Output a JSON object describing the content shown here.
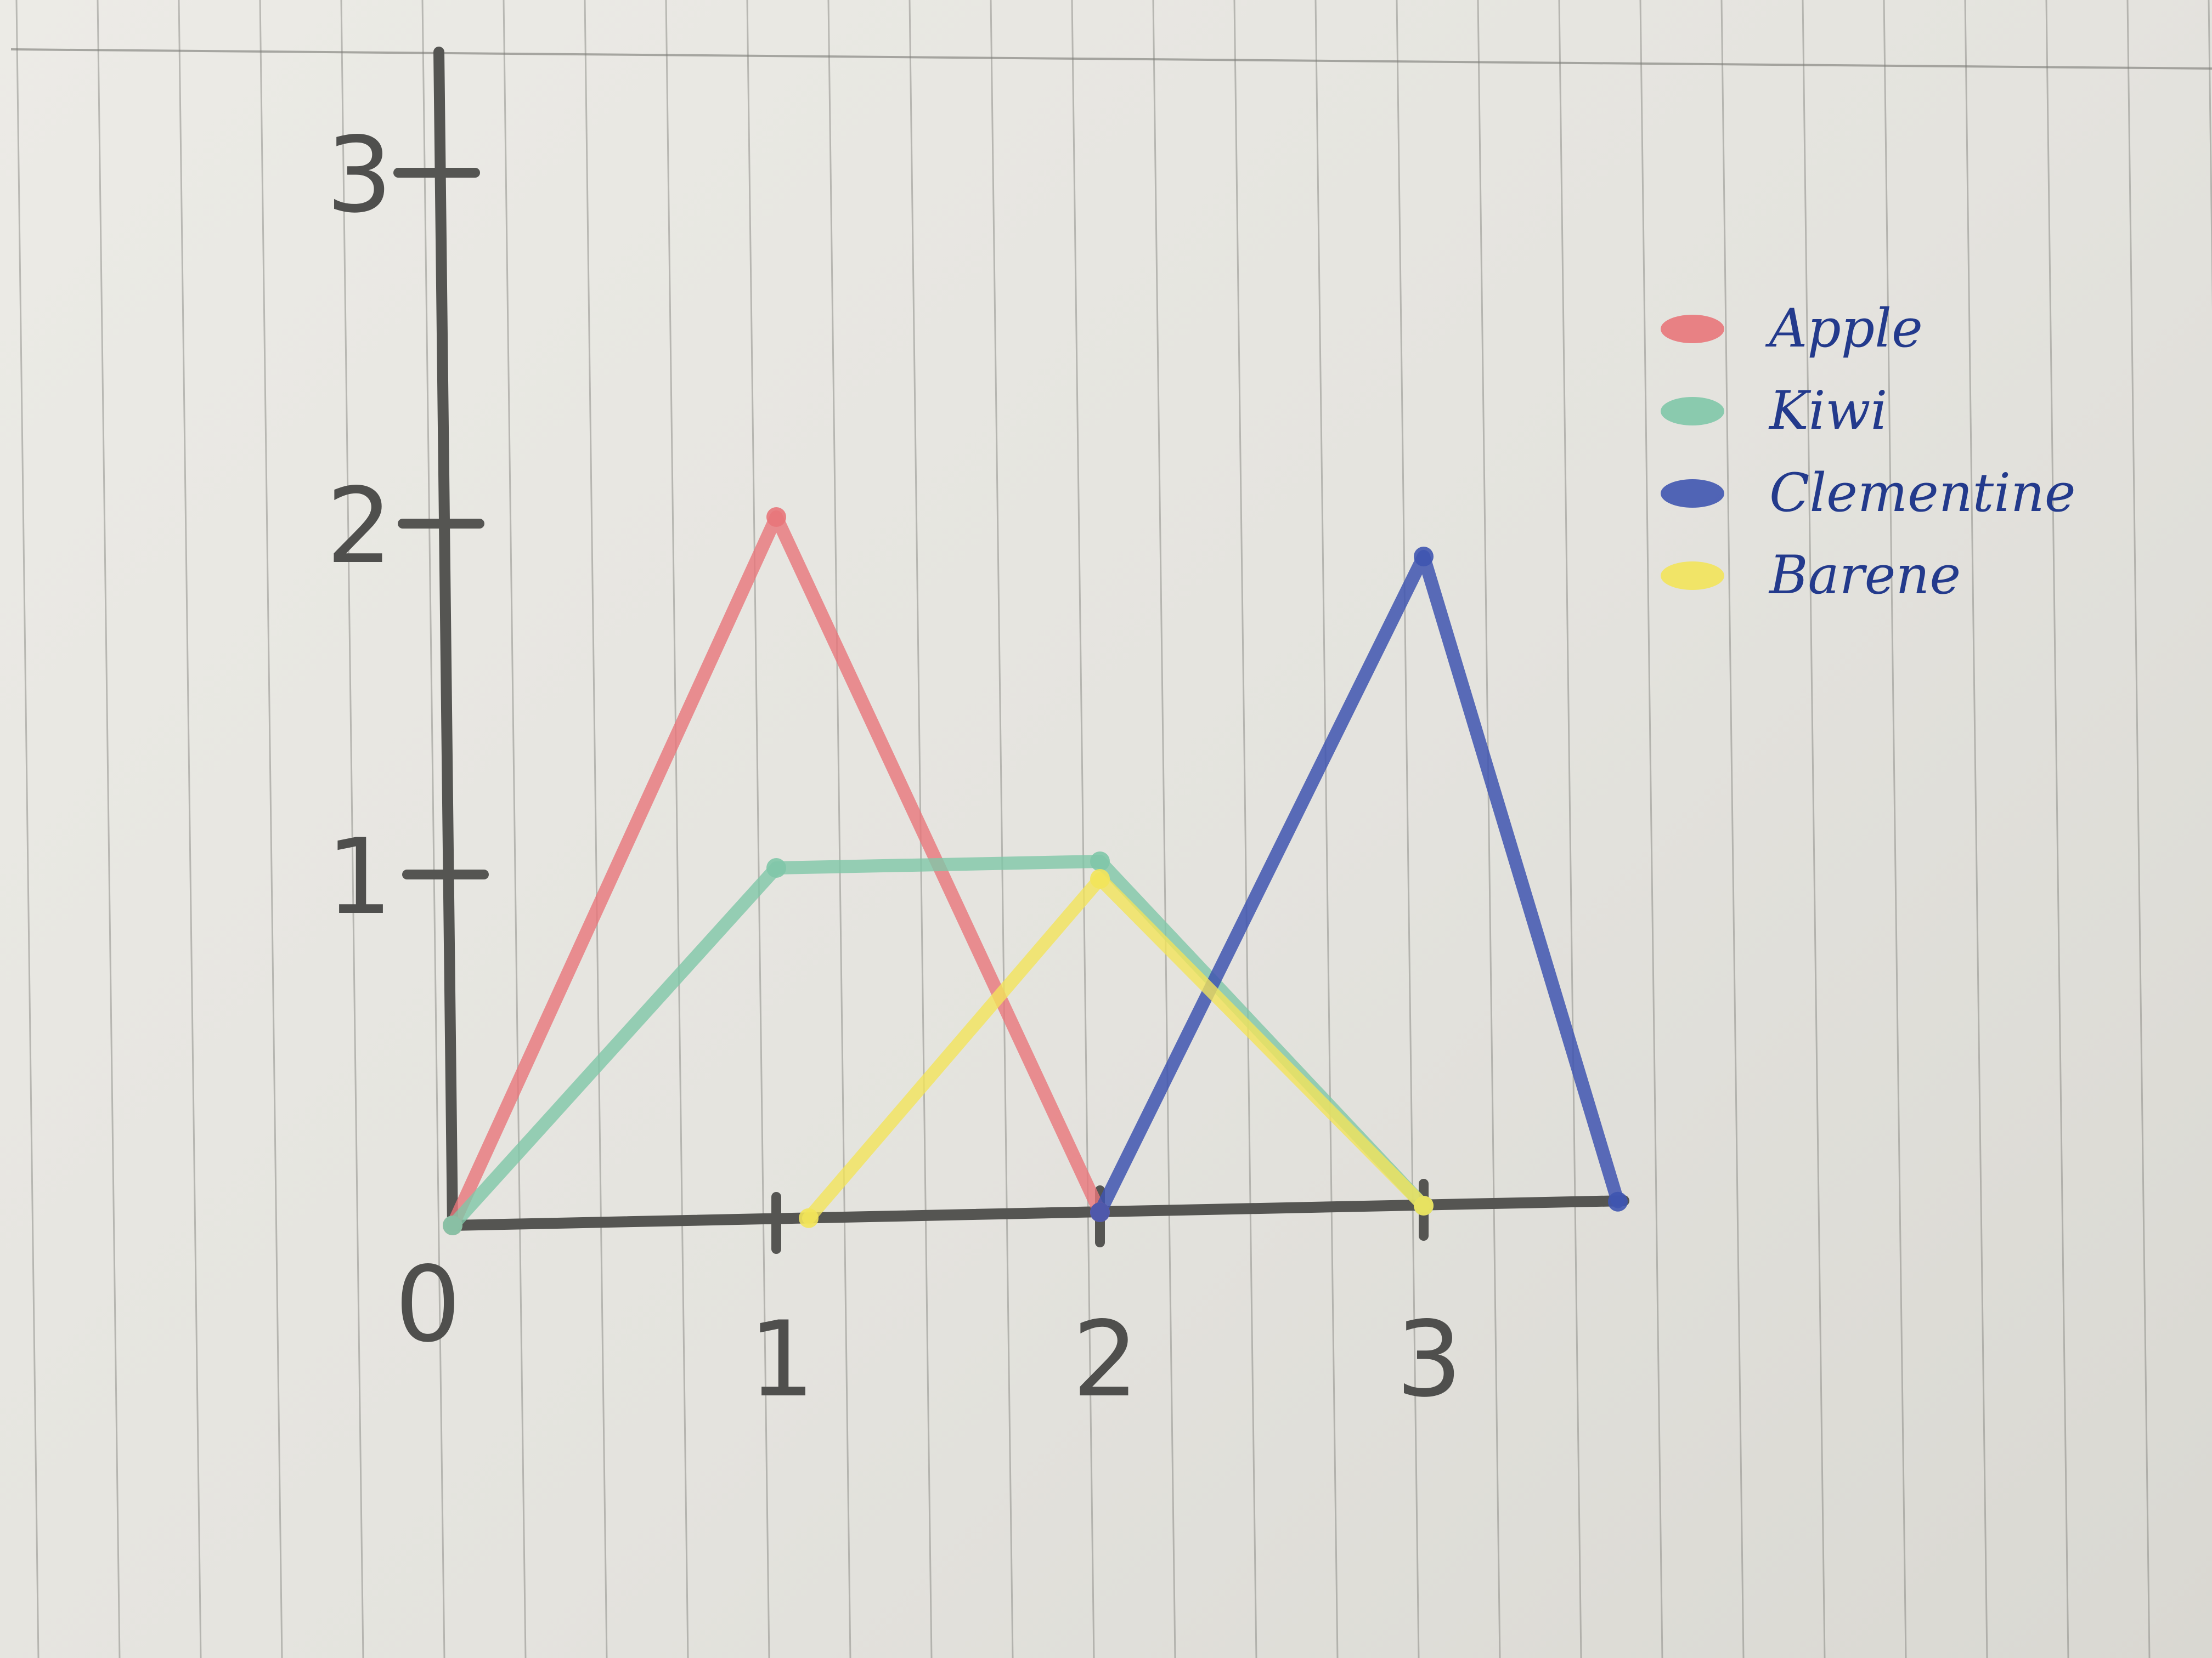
{
  "chart_data": {
    "type": "line",
    "title": "",
    "xlabel": "",
    "ylabel": "",
    "xlim": [
      0,
      3.6
    ],
    "ylim": [
      0,
      3
    ],
    "x_ticks": [
      "0",
      "1",
      "2",
      "3"
    ],
    "y_ticks": [
      "1",
      "2",
      "3"
    ],
    "grid": false,
    "legend_position": "top-right",
    "series": [
      {
        "name": "Apple",
        "color": "#e8767a",
        "points": [
          [
            0,
            0
          ],
          [
            1,
            2
          ],
          [
            2,
            0
          ]
        ]
      },
      {
        "name": "Kiwi",
        "color": "#7fc7a8",
        "points": [
          [
            0,
            0
          ],
          [
            1,
            1
          ],
          [
            2,
            1
          ],
          [
            3,
            0
          ]
        ]
      },
      {
        "name": "Clementine",
        "color": "#3f55b0",
        "points": [
          [
            2,
            0
          ],
          [
            3,
            1.85
          ],
          [
            3.6,
            0
          ]
        ]
      },
      {
        "name": "Barene",
        "color": "#f2e45a",
        "points": [
          [
            1.1,
            0
          ],
          [
            2,
            0.95
          ],
          [
            3,
            0
          ]
        ]
      }
    ]
  }
}
